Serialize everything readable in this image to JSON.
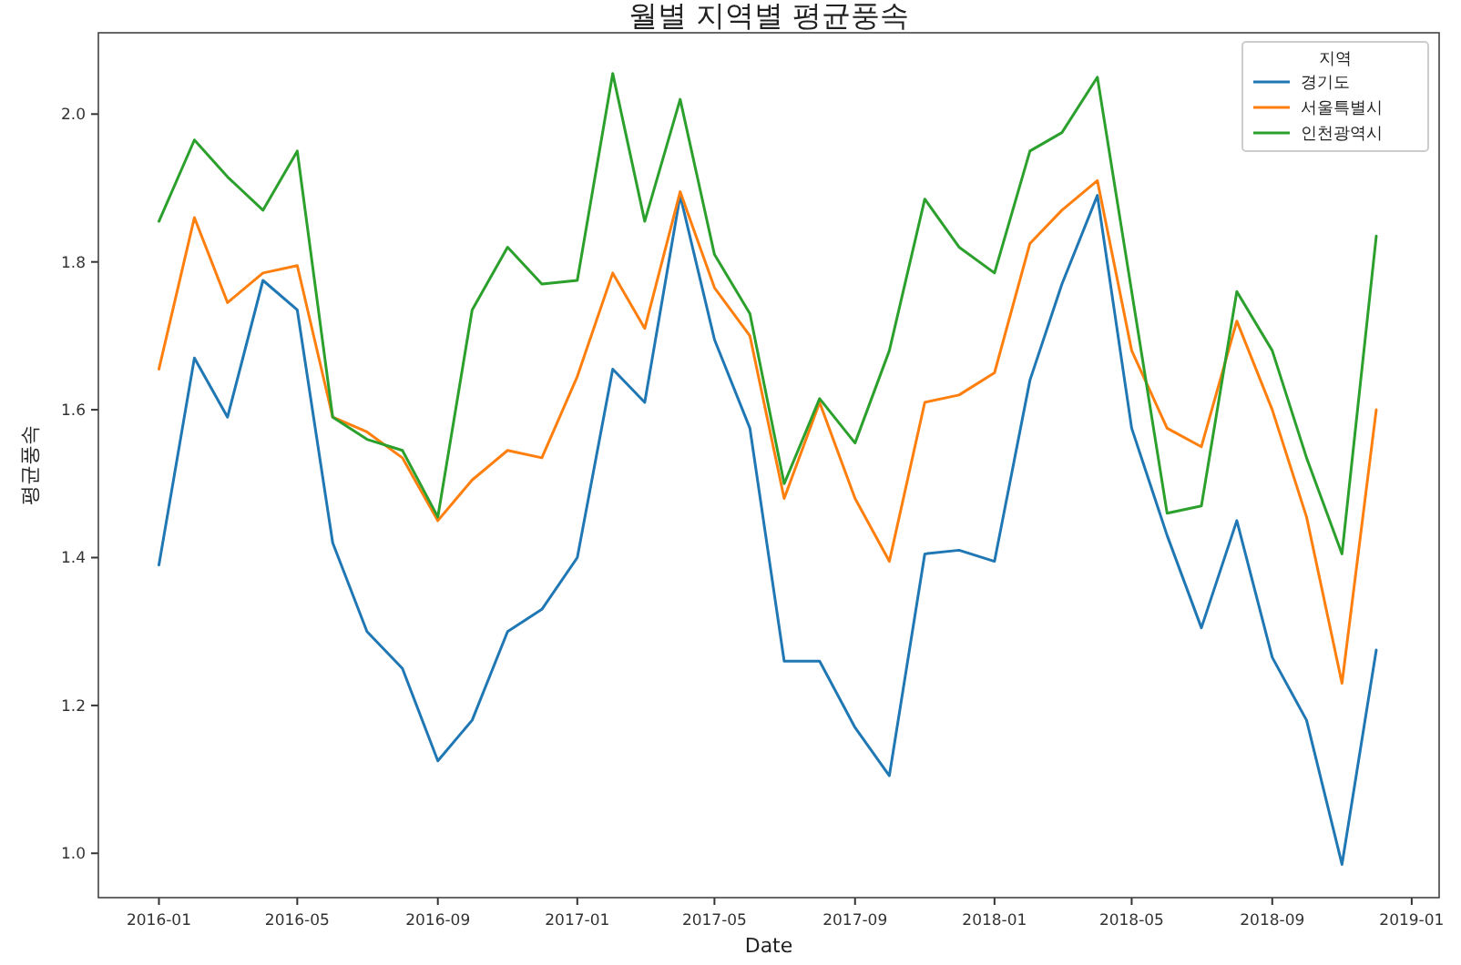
{
  "chart_data": {
    "type": "line",
    "title": "월별 지역별 평균풍속",
    "xlabel": "Date",
    "ylabel": "평균풍속",
    "legend_title": "지역",
    "legend": "top right",
    "grid": false,
    "x": [
      "2016-01",
      "2016-02",
      "2016-03",
      "2016-04",
      "2016-05",
      "2016-06",
      "2016-07",
      "2016-08",
      "2016-09",
      "2016-10",
      "2016-11",
      "2016-12",
      "2017-01",
      "2017-02",
      "2017-03",
      "2017-04",
      "2017-05",
      "2017-06",
      "2017-07",
      "2017-08",
      "2017-09",
      "2017-10",
      "2017-11",
      "2017-12",
      "2018-01",
      "2018-02",
      "2018-03",
      "2018-04",
      "2018-05",
      "2018-06",
      "2018-07",
      "2018-08",
      "2018-09",
      "2018-10",
      "2018-11",
      "2018-12"
    ],
    "xlim": [
      "2015-11-09",
      "2019-01-25"
    ],
    "xticks": [
      "2016-01",
      "2016-05",
      "2016-09",
      "2017-01",
      "2017-05",
      "2017-09",
      "2018-01",
      "2018-05",
      "2018-09",
      "2019-01"
    ],
    "ylim": [
      0.94,
      2.11
    ],
    "yticks": [
      {
        "value": 1.0,
        "label": "1.0"
      },
      {
        "value": 1.2,
        "label": "1.2"
      },
      {
        "value": 1.4,
        "label": "1.4"
      },
      {
        "value": 1.6,
        "label": "1.6"
      },
      {
        "value": 1.8,
        "label": "1.8"
      },
      {
        "value": 2.0,
        "label": "2.0"
      }
    ],
    "series": [
      {
        "name": "경기도",
        "color": "#1f77b4",
        "values": [
          1.39,
          1.67,
          1.59,
          1.775,
          1.735,
          1.42,
          1.3,
          1.25,
          1.125,
          1.18,
          1.3,
          1.33,
          1.4,
          1.655,
          1.61,
          1.89,
          1.695,
          1.575,
          1.26,
          1.26,
          1.17,
          1.105,
          1.405,
          1.41,
          1.395,
          1.64,
          1.77,
          1.89,
          1.575,
          1.43,
          1.305,
          1.45,
          1.265,
          1.18,
          0.985,
          1.275
        ]
      },
      {
        "name": "서울특별시",
        "color": "#ff7f0e",
        "values": [
          1.655,
          1.86,
          1.745,
          1.785,
          1.795,
          1.59,
          1.57,
          1.535,
          1.45,
          1.505,
          1.545,
          1.535,
          1.645,
          1.785,
          1.71,
          1.895,
          1.765,
          1.7,
          1.48,
          1.61,
          1.48,
          1.395,
          1.61,
          1.62,
          1.65,
          1.825,
          1.87,
          1.91,
          1.68,
          1.575,
          1.55,
          1.72,
          1.6,
          1.455,
          1.23,
          1.6
        ]
      },
      {
        "name": "인천광역시",
        "color": "#2ca02c",
        "values": [
          1.855,
          1.965,
          1.915,
          1.87,
          1.95,
          1.59,
          1.56,
          1.545,
          1.455,
          1.735,
          1.82,
          1.77,
          1.775,
          2.055,
          1.855,
          2.02,
          1.81,
          1.73,
          1.5,
          1.615,
          1.555,
          1.68,
          1.885,
          1.82,
          1.785,
          1.95,
          1.975,
          2.05,
          1.76,
          1.46,
          1.47,
          1.76,
          1.68,
          1.535,
          1.405,
          1.835
        ]
      }
    ]
  }
}
